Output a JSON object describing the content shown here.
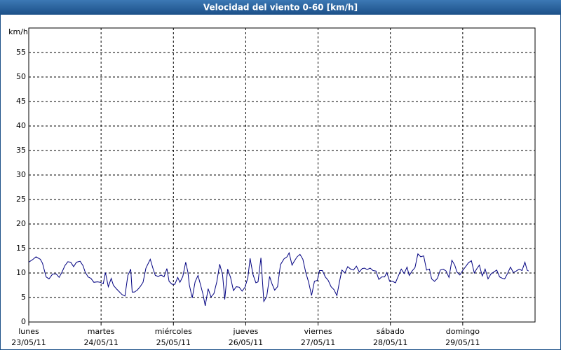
{
  "chart_data": {
    "type": "line",
    "title": "Velocidad del viento 0-60 [km/h]",
    "ylabel": "km/h",
    "color": "#000080",
    "grid": true,
    "xlim": [
      0,
      7
    ],
    "ylim": [
      0,
      60
    ],
    "yticks": [
      0,
      5,
      10,
      15,
      20,
      25,
      30,
      35,
      40,
      45,
      50,
      55
    ],
    "xticks": [
      {
        "value": 0,
        "label": "lunes"
      },
      {
        "value": 1,
        "label": "martes"
      },
      {
        "value": 2,
        "label": "miércoles"
      },
      {
        "value": 3,
        "label": "jueves"
      },
      {
        "value": 4,
        "label": "viernes"
      },
      {
        "value": 5,
        "label": "sábado"
      },
      {
        "value": 6,
        "label": "domingo"
      }
    ],
    "xtick_dates": [
      "23/05/11",
      "24/05/11",
      "25/05/11",
      "26/05/11",
      "27/05/11",
      "28/05/11",
      "29/05/11"
    ],
    "x": [
      0,
      0.06,
      0.1,
      0.16,
      0.19,
      0.24,
      0.28,
      0.33,
      0.38,
      0.42,
      0.46,
      0.5,
      0.54,
      0.58,
      0.62,
      0.66,
      0.71,
      0.75,
      0.78,
      0.82,
      0.86,
      0.9,
      0.95,
      0.99,
      1.03,
      1.06,
      1.1,
      1.14,
      1.17,
      1.21,
      1.25,
      1.29,
      1.33,
      1.37,
      1.41,
      1.43,
      1.46,
      1.5,
      1.54,
      1.58,
      1.62,
      1.68,
      1.72,
      1.75,
      1.79,
      1.83,
      1.87,
      1.91,
      1.94,
      1.98,
      2.02,
      2.06,
      2.09,
      2.13,
      2.17,
      2.2,
      2.22,
      2.26,
      2.3,
      2.34,
      2.38,
      2.41,
      2.44,
      2.48,
      2.52,
      2.56,
      2.6,
      2.64,
      2.68,
      2.71,
      2.75,
      2.79,
      2.83,
      2.87,
      2.91,
      2.95,
      2.99,
      3.03,
      3.06,
      3.1,
      3.14,
      3.17,
      3.21,
      3.25,
      3.29,
      3.33,
      3.36,
      3.4,
      3.44,
      3.48,
      3.53,
      3.57,
      3.6,
      3.64,
      3.67,
      3.71,
      3.75,
      3.79,
      3.83,
      3.87,
      3.91,
      3.95,
      3.99,
      4.02,
      4.06,
      4.1,
      4.14,
      4.18,
      4.22,
      4.26,
      4.3,
      4.33,
      4.37,
      4.41,
      4.45,
      4.49,
      4.53,
      4.57,
      4.61,
      4.64,
      4.68,
      4.72,
      4.76,
      4.8,
      4.84,
      4.88,
      4.92,
      4.95,
      4.99,
      5.03,
      5.07,
      5.11,
      5.15,
      5.19,
      5.23,
      5.26,
      5.3,
      5.34,
      5.38,
      5.42,
      5.46,
      5.5,
      5.54,
      5.57,
      5.61,
      5.65,
      5.69,
      5.73,
      5.77,
      5.81,
      5.85,
      5.89,
      5.92,
      5.96,
      6.0,
      6.04,
      6.08,
      6.12,
      6.16,
      6.2,
      6.23,
      6.27,
      6.31,
      6.35,
      6.39,
      6.43,
      6.47,
      6.51,
      6.55,
      6.58,
      6.62,
      6.66,
      6.7,
      6.74,
      6.78,
      6.82,
      6.86,
      6.89,
      6.91
    ],
    "values": [
      12.2,
      12.8,
      13.3,
      12.8,
      12,
      9.2,
      8.8,
      9.8,
      9.8,
      9.1,
      10.2,
      11.5,
      12.3,
      12.2,
      11.3,
      12.2,
      12.4,
      11.5,
      10.2,
      9.2,
      8.9,
      8.1,
      8.2,
      8.1,
      7.8,
      10.1,
      7.2,
      8.9,
      7.5,
      6.8,
      6.2,
      5.6,
      5.3,
      9.5,
      10.8,
      6.1,
      6.1,
      6.5,
      7.2,
      8.1,
      11,
      12.8,
      10.8,
      9.5,
      9.3,
      9.6,
      9.2,
      10.9,
      8.3,
      7.7,
      7.7,
      9.1,
      8.1,
      9.3,
      12.2,
      10.2,
      7.6,
      4.9,
      8.2,
      9.5,
      7.3,
      5.6,
      3.3,
      6.8,
      5.1,
      5.8,
      8.2,
      11.8,
      9.6,
      4.6,
      10.8,
      9.1,
      6.4,
      7.2,
      7.1,
      6.3,
      7.1,
      9.1,
      13,
      9.7,
      8,
      8.2,
      13.1,
      4.2,
      5.2,
      9.3,
      7.9,
      6.5,
      7.2,
      11.7,
      12.9,
      13.3,
      14.1,
      11.6,
      12.4,
      13.3,
      13.8,
      12.8,
      10.1,
      8.1,
      5.4,
      8.3,
      8.5,
      10.5,
      10.5,
      9.2,
      8.5,
      7.2,
      6.6,
      5.4,
      8.5,
      10.6,
      10,
      11.3,
      10.8,
      10.6,
      11.4,
      10.2,
      10.9,
      11,
      10.7,
      11,
      10.5,
      10.4,
      8.7,
      9.2,
      9.2,
      10.1,
      8.3,
      8.3,
      8,
      9.4,
      10.8,
      9.9,
      11.2,
      9.5,
      10.4,
      11.1,
      13.9,
      13.3,
      13.5,
      10.6,
      10.8,
      8.8,
      8.3,
      8.9,
      10.6,
      10.8,
      10.4,
      9.1,
      12.6,
      11.6,
      10.2,
      9.6,
      10.5,
      11.3,
      12.1,
      12.5,
      10,
      11,
      11.6,
      9.4,
      10.8,
      8.8,
      9.8,
      10.2,
      10.6,
      9.2,
      8.9,
      8.8,
      9.9,
      11.2,
      10.1,
      10.4,
      10.8,
      10.5,
      12.2,
      10.6,
      10.4
    ]
  }
}
